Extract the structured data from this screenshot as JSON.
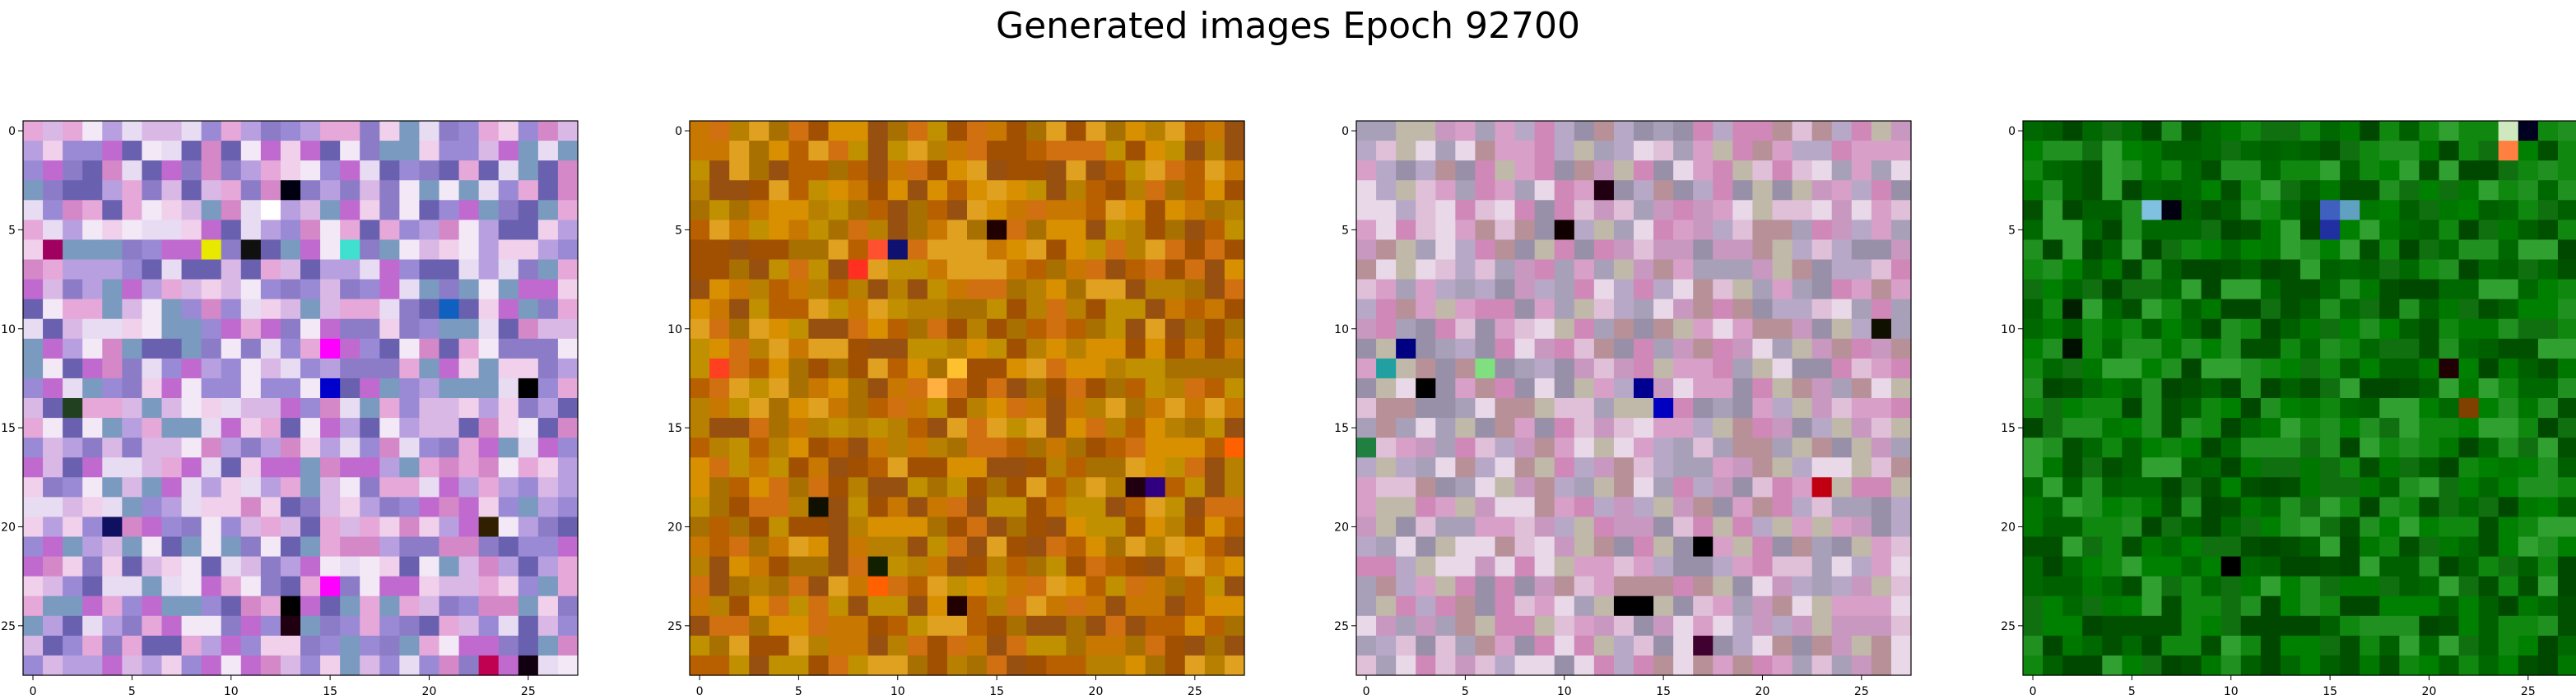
{
  "figure": {
    "title": "Generated images Epoch 92700"
  },
  "chart_data": [
    {
      "type": "heatmap",
      "title": "",
      "xlabel": "",
      "ylabel": "",
      "grid_size": [
        28,
        28
      ],
      "xticks": [
        0,
        5,
        10,
        15,
        20,
        25
      ],
      "yticks": [
        0,
        5,
        10,
        15,
        20,
        25
      ],
      "xlim": [
        -0.5,
        27.5
      ],
      "ylim": [
        27.5,
        -0.5
      ],
      "grid": false,
      "palette": [
        "#8c7cc8",
        "#c06ad0",
        "#d9b8e6",
        "#e8dcf2",
        "#f2e8f6",
        "#9a8ad6",
        "#d488c8",
        "#6a60b0",
        "#e6a8d8",
        "#b8a0e0",
        "#f0d0ea",
        "#7a9ac0"
      ],
      "accent_cells": [
        {
          "row": 4,
          "col": 12,
          "color": "#ffffff"
        },
        {
          "row": 6,
          "col": 9,
          "color": "#e8e800"
        },
        {
          "row": 6,
          "col": 11,
          "color": "#101010"
        },
        {
          "row": 3,
          "col": 13,
          "color": "#000010"
        },
        {
          "row": 6,
          "col": 16,
          "color": "#40e0d0"
        },
        {
          "row": 6,
          "col": 1,
          "color": "#a00060"
        },
        {
          "row": 9,
          "col": 21,
          "color": "#1060c0"
        },
        {
          "row": 11,
          "col": 15,
          "color": "#ff00ff"
        },
        {
          "row": 13,
          "col": 15,
          "color": "#0000cc"
        },
        {
          "row": 13,
          "col": 25,
          "color": "#000000"
        },
        {
          "row": 14,
          "col": 2,
          "color": "#204020"
        },
        {
          "row": 20,
          "col": 4,
          "color": "#101060"
        },
        {
          "row": 24,
          "col": 13,
          "color": "#000000"
        },
        {
          "row": 25,
          "col": 13,
          "color": "#200010"
        },
        {
          "row": 23,
          "col": 15,
          "color": "#ff00ff"
        },
        {
          "row": 27,
          "col": 23,
          "color": "#c00050"
        },
        {
          "row": 27,
          "col": 25,
          "color": "#100010"
        },
        {
          "row": 20,
          "col": 23,
          "color": "#302000"
        }
      ]
    },
    {
      "type": "heatmap",
      "title": "",
      "xlabel": "",
      "ylabel": "",
      "grid_size": [
        28,
        28
      ],
      "xticks": [
        0,
        5,
        10,
        15,
        20,
        25
      ],
      "yticks": [
        0,
        5,
        10,
        15,
        20,
        25
      ],
      "xlim": [
        -0.5,
        27.5
      ],
      "ylim": [
        27.5,
        -0.5
      ],
      "grid": false,
      "palette": [
        "#c87800",
        "#b86000",
        "#d89000",
        "#a05000",
        "#c09000",
        "#e0a020",
        "#985010",
        "#b88000",
        "#d07010",
        "#a87000"
      ],
      "accent_cells": [
        {
          "row": 5,
          "col": 15,
          "color": "#200000"
        },
        {
          "row": 6,
          "col": 10,
          "color": "#101070"
        },
        {
          "row": 6,
          "col": 9,
          "color": "#ff5030"
        },
        {
          "row": 7,
          "col": 8,
          "color": "#ff3020"
        },
        {
          "row": 12,
          "col": 13,
          "color": "#ffc030"
        },
        {
          "row": 13,
          "col": 12,
          "color": "#ffb040"
        },
        {
          "row": 12,
          "col": 1,
          "color": "#ff4020"
        },
        {
          "row": 18,
          "col": 23,
          "color": "#300080"
        },
        {
          "row": 18,
          "col": 22,
          "color": "#200010"
        },
        {
          "row": 19,
          "col": 6,
          "color": "#101000"
        },
        {
          "row": 24,
          "col": 13,
          "color": "#200000"
        },
        {
          "row": 23,
          "col": 9,
          "color": "#ff6000"
        },
        {
          "row": 16,
          "col": 27,
          "color": "#ff6000"
        },
        {
          "row": 22,
          "col": 9,
          "color": "#102000"
        }
      ]
    },
    {
      "type": "heatmap",
      "title": "",
      "xlabel": "",
      "ylabel": "",
      "grid_size": [
        28,
        28
      ],
      "xticks": [
        0,
        5,
        10,
        15,
        20,
        25
      ],
      "yticks": [
        0,
        5,
        10,
        15,
        20,
        25
      ],
      "xlim": [
        -0.5,
        27.5
      ],
      "ylim": [
        27.5,
        -0.5
      ],
      "grid": false,
      "palette": [
        "#c898c0",
        "#e0c0d8",
        "#b8a8c8",
        "#d8a0c8",
        "#a8a0b8",
        "#e8d8e8",
        "#c0b8a8",
        "#d088b8",
        "#b89098",
        "#9890a8"
      ],
      "accent_cells": [
        {
          "row": 3,
          "col": 12,
          "color": "#200010"
        },
        {
          "row": 5,
          "col": 10,
          "color": "#100000"
        },
        {
          "row": 11,
          "col": 2,
          "color": "#000080"
        },
        {
          "row": 12,
          "col": 1,
          "color": "#20a0a0"
        },
        {
          "row": 13,
          "col": 3,
          "color": "#000000"
        },
        {
          "row": 13,
          "col": 14,
          "color": "#000090"
        },
        {
          "row": 14,
          "col": 15,
          "color": "#0000c0"
        },
        {
          "row": 10,
          "col": 26,
          "color": "#101000"
        },
        {
          "row": 18,
          "col": 23,
          "color": "#c00010"
        },
        {
          "row": 24,
          "col": 13,
          "color": "#000000"
        },
        {
          "row": 24,
          "col": 14,
          "color": "#000000"
        },
        {
          "row": 21,
          "col": 17,
          "color": "#000000"
        },
        {
          "row": 26,
          "col": 17,
          "color": "#400030"
        },
        {
          "row": 12,
          "col": 6,
          "color": "#80e080"
        },
        {
          "row": 16,
          "col": 0,
          "color": "#208040"
        }
      ]
    },
    {
      "type": "heatmap",
      "title": "",
      "xlabel": "",
      "ylabel": "",
      "grid_size": [
        28,
        28
      ],
      "xticks": [
        0,
        5,
        10,
        15,
        20,
        25
      ],
      "yticks": [
        0,
        5,
        10,
        15,
        20,
        25
      ],
      "xlim": [
        -0.5,
        27.5
      ],
      "ylim": [
        27.5,
        -0.5
      ],
      "grid": false,
      "palette": [
        "#006000",
        "#008000",
        "#107010",
        "#005000",
        "#209020",
        "#007800",
        "#004800",
        "#30a030",
        "#006800",
        "#108810"
      ],
      "accent_cells": [
        {
          "row": 0,
          "col": 24,
          "color": "#d0e8c0"
        },
        {
          "row": 0,
          "col": 25,
          "color": "#000020"
        },
        {
          "row": 1,
          "col": 24,
          "color": "#ff8040"
        },
        {
          "row": 4,
          "col": 6,
          "color": "#80c0e0"
        },
        {
          "row": 4,
          "col": 7,
          "color": "#000010"
        },
        {
          "row": 4,
          "col": 15,
          "color": "#4060c0"
        },
        {
          "row": 5,
          "col": 15,
          "color": "#2030a0"
        },
        {
          "row": 4,
          "col": 16,
          "color": "#60a0c0"
        },
        {
          "row": 12,
          "col": 21,
          "color": "#200000"
        },
        {
          "row": 14,
          "col": 22,
          "color": "#804000"
        },
        {
          "row": 22,
          "col": 10,
          "color": "#000000"
        },
        {
          "row": 9,
          "col": 2,
          "color": "#002000"
        },
        {
          "row": 11,
          "col": 2,
          "color": "#001000"
        }
      ]
    }
  ]
}
